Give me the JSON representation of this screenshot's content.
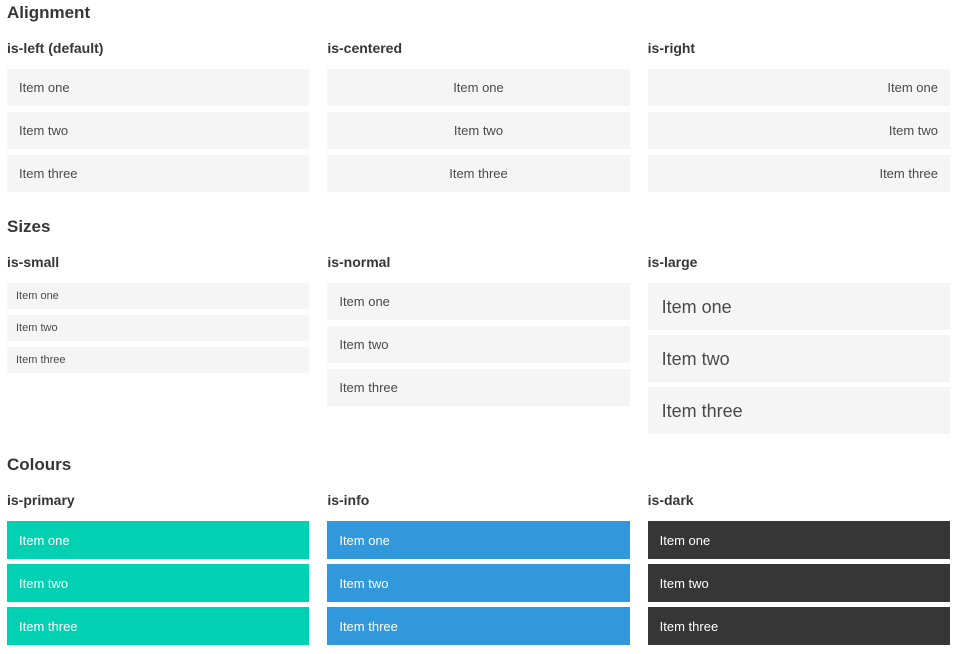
{
  "sections": [
    {
      "title": "Alignment",
      "groups": [
        {
          "label": "is-left (default)",
          "items": [
            "Item one",
            "Item two",
            "Item three"
          ]
        },
        {
          "label": "is-centered",
          "items": [
            "Item one",
            "Item two",
            "Item three"
          ]
        },
        {
          "label": "is-right",
          "items": [
            "Item one",
            "Item two",
            "Item three"
          ]
        }
      ]
    },
    {
      "title": "Sizes",
      "groups": [
        {
          "label": "is-small",
          "items": [
            "Item one",
            "Item two",
            "Item three"
          ]
        },
        {
          "label": "is-normal",
          "items": [
            "Item one",
            "Item two",
            "Item three"
          ]
        },
        {
          "label": "is-large",
          "items": [
            "Item one",
            "Item two",
            "Item three"
          ]
        }
      ]
    },
    {
      "title": "Colours",
      "groups": [
        {
          "label": "is-primary",
          "items": [
            "Item one",
            "Item two",
            "Item three"
          ]
        },
        {
          "label": "is-info",
          "items": [
            "Item one",
            "Item two",
            "Item three"
          ]
        },
        {
          "label": "is-dark",
          "items": [
            "Item one",
            "Item two",
            "Item three"
          ]
        }
      ]
    }
  ],
  "colors": {
    "primary": "#00d1b2",
    "info": "#3298dc",
    "dark": "#363636",
    "item_bg": "#f5f5f5"
  }
}
